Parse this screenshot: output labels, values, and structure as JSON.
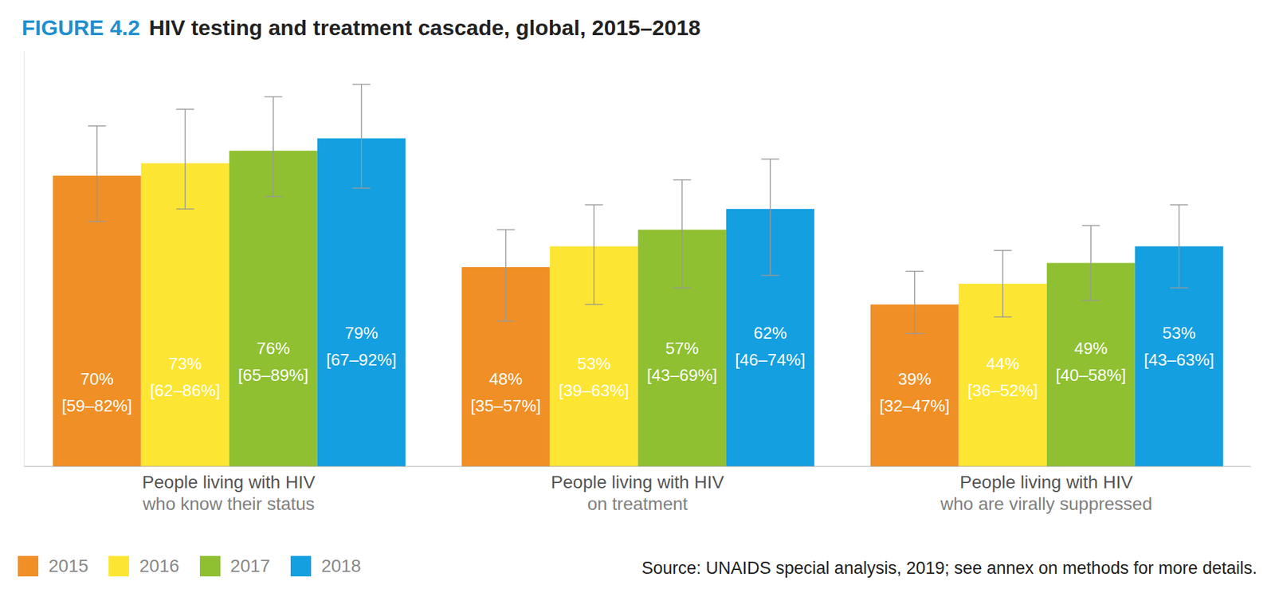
{
  "chart_data": {
    "type": "bar",
    "figure_number": "FIGURE 4.2",
    "title": "HIV testing and treatment cascade, global, 2015–2018",
    "source": "Source: UNAIDS special analysis, 2019; see annex on methods for more details.",
    "categories": [
      "People living with HIV\nwho know their status",
      "People living with HIV\non treatment",
      "People living with HIV\nwho are virally suppressed"
    ],
    "series": [
      {
        "name": "2015",
        "color": "#f08f26",
        "values": [
          70,
          48,
          39
        ],
        "value_labels": [
          "70%",
          "48%",
          "39%"
        ],
        "ranges": [
          [
            59,
            82
          ],
          [
            35,
            57
          ],
          [
            32,
            47
          ]
        ],
        "range_labels": [
          "[59–82%]",
          "[35–57%]",
          "[32–47%]"
        ]
      },
      {
        "name": "2016",
        "color": "#fde633",
        "values": [
          73,
          53,
          44
        ],
        "value_labels": [
          "73%",
          "53%",
          "44%"
        ],
        "ranges": [
          [
            62,
            86
          ],
          [
            39,
            63
          ],
          [
            36,
            52
          ]
        ],
        "range_labels": [
          "[62–86%]",
          "[39–63%]",
          "[36–52%]"
        ]
      },
      {
        "name": "2017",
        "color": "#8fc031",
        "values": [
          76,
          57,
          49
        ],
        "value_labels": [
          "76%",
          "57%",
          "49%"
        ],
        "ranges": [
          [
            65,
            89
          ],
          [
            43,
            69
          ],
          [
            40,
            58
          ]
        ],
        "range_labels": [
          "[65–89%]",
          "[43–69%]",
          "[40–58%]"
        ]
      },
      {
        "name": "2018",
        "color": "#149fe0",
        "values": [
          79,
          62,
          53
        ],
        "value_labels": [
          "79%",
          "62%",
          "53%"
        ],
        "ranges": [
          [
            67,
            92
          ],
          [
            46,
            74
          ],
          [
            43,
            63
          ]
        ],
        "range_labels": [
          "[67–92%]",
          "[46–74%]",
          "[43–63%]"
        ]
      }
    ],
    "ylim": [
      0,
      100
    ],
    "tick_labels": "x",
    "data_labels": true,
    "grid": false,
    "legend": "bottom left"
  }
}
